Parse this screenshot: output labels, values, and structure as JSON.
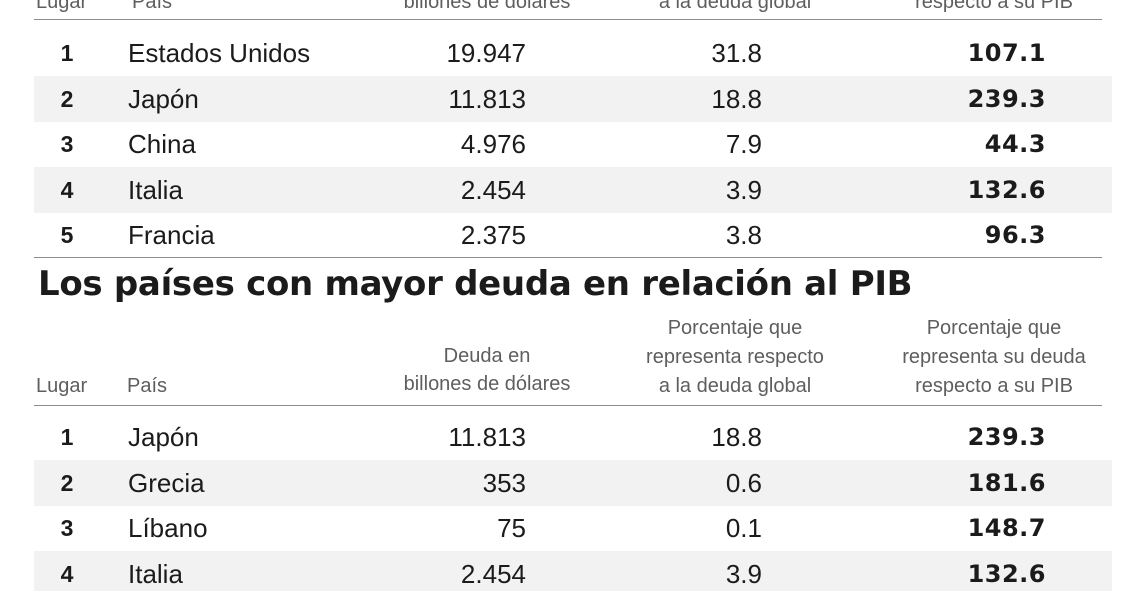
{
  "table1": {
    "headers": {
      "lugar": "Lugar",
      "pais": "País",
      "deuda": "billones de dólares",
      "global": "a la deuda global",
      "pib": "respecto a su PIB"
    },
    "rows": [
      {
        "rank": "1",
        "country": "Estados Unidos",
        "debt": "19.947",
        "pct_global": "31.8",
        "pct_pib": "107.1"
      },
      {
        "rank": "2",
        "country": "Japón",
        "debt": "11.813",
        "pct_global": "18.8",
        "pct_pib": "239.3"
      },
      {
        "rank": "3",
        "country": "China",
        "debt": "4.976",
        "pct_global": "7.9",
        "pct_pib": "44.3"
      },
      {
        "rank": "4",
        "country": "Italia",
        "debt": "2.454",
        "pct_global": "3.9",
        "pct_pib": "132.6"
      },
      {
        "rank": "5",
        "country": "Francia",
        "debt": "2.375",
        "pct_global": "3.8",
        "pct_pib": "96.3"
      }
    ]
  },
  "table2": {
    "title": "Los países con mayor deuda en relación al PIB",
    "headers": {
      "lugar": "Lugar",
      "pais": "País",
      "deuda_line1": "Deuda en",
      "deuda_line2": "billones de dólares",
      "global_line1": "Porcentaje que",
      "global_line2": "representa respecto",
      "global_line3": "a la deuda global",
      "pib_line1": "Porcentaje que",
      "pib_line2": "representa su deuda",
      "pib_line3": "respecto a su PIB"
    },
    "rows": [
      {
        "rank": "1",
        "country": "Japón",
        "debt": "11.813",
        "pct_global": "18.8",
        "pct_pib": "239.3"
      },
      {
        "rank": "2",
        "country": "Grecia",
        "debt": "353",
        "pct_global": "0.6",
        "pct_pib": "181.6"
      },
      {
        "rank": "3",
        "country": "Líbano",
        "debt": "75",
        "pct_global": "0.1",
        "pct_pib": "148.7"
      },
      {
        "rank": "4",
        "country": "Italia",
        "debt": "2.454",
        "pct_global": "3.9",
        "pct_pib": "132.6"
      }
    ]
  }
}
